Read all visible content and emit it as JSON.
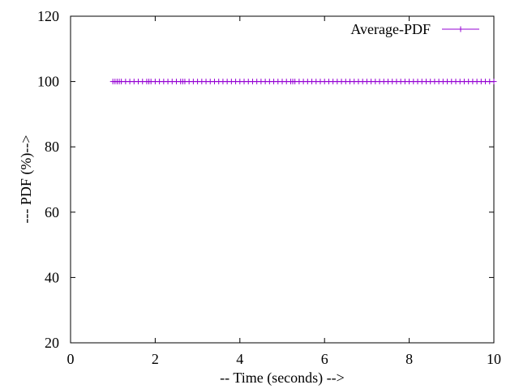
{
  "chart_data": {
    "type": "line",
    "title": "",
    "xlabel": "-- Time (seconds) -->",
    "ylabel": "--- PDF (%)-->",
    "xlim": [
      0,
      10
    ],
    "ylim": [
      20,
      120
    ],
    "xticks": [
      0,
      2,
      4,
      6,
      8,
      10
    ],
    "yticks": [
      20,
      40,
      60,
      80,
      100,
      120
    ],
    "grid": false,
    "legend_position": "top-right",
    "series": [
      {
        "name": "Average-PDF",
        "color": "#9400d3",
        "marker": "plus",
        "x": [
          1.0,
          1.05,
          1.1,
          1.15,
          1.2,
          1.3,
          1.4,
          1.5,
          1.6,
          1.7,
          1.8,
          1.85,
          1.9,
          2.0,
          2.1,
          2.2,
          2.3,
          2.4,
          2.5,
          2.6,
          2.65,
          2.7,
          2.8,
          2.9,
          3.0,
          3.1,
          3.2,
          3.3,
          3.4,
          3.5,
          3.6,
          3.7,
          3.8,
          3.9,
          4.0,
          4.1,
          4.2,
          4.3,
          4.4,
          4.5,
          4.6,
          4.7,
          4.8,
          4.9,
          5.0,
          5.1,
          5.2,
          5.25,
          5.3,
          5.4,
          5.5,
          5.6,
          5.7,
          5.8,
          5.9,
          6.0,
          6.1,
          6.2,
          6.3,
          6.4,
          6.5,
          6.6,
          6.7,
          6.8,
          6.9,
          7.0,
          7.1,
          7.2,
          7.3,
          7.4,
          7.5,
          7.6,
          7.7,
          7.8,
          7.9,
          8.0,
          8.1,
          8.2,
          8.3,
          8.4,
          8.5,
          8.6,
          8.7,
          8.8,
          8.9,
          9.0,
          9.1,
          9.2,
          9.3,
          9.4,
          9.5,
          9.6,
          9.7,
          9.8,
          9.9,
          10.0
        ],
        "y": [
          100,
          100,
          100,
          100,
          100,
          100,
          100,
          100,
          100,
          100,
          100,
          100,
          100,
          100,
          100,
          100,
          100,
          100,
          100,
          100,
          100,
          100,
          100,
          100,
          100,
          100,
          100,
          100,
          100,
          100,
          100,
          100,
          100,
          100,
          100,
          100,
          100,
          100,
          100,
          100,
          100,
          100,
          100,
          100,
          100,
          100,
          100,
          100,
          100,
          100,
          100,
          100,
          100,
          100,
          100,
          100,
          100,
          100,
          100,
          100,
          100,
          100,
          100,
          100,
          100,
          100,
          100,
          100,
          100,
          100,
          100,
          100,
          100,
          100,
          100,
          100,
          100,
          100,
          100,
          100,
          100,
          100,
          100,
          100,
          100,
          100,
          100,
          100,
          100,
          100,
          100,
          100,
          100,
          100,
          100,
          100
        ]
      }
    ]
  }
}
